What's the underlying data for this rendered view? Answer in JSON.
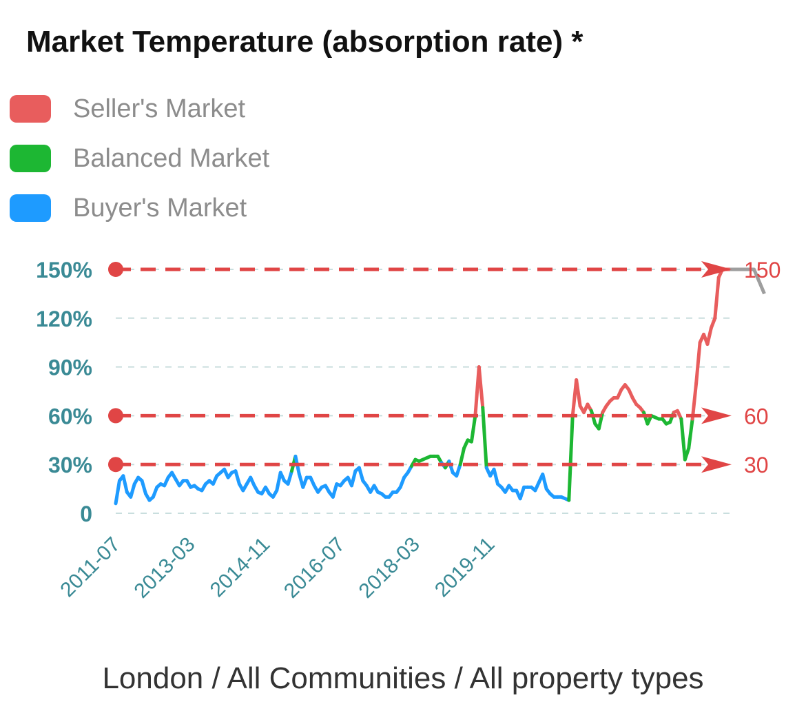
{
  "title": "Market Temperature (absorption rate) *",
  "legend": [
    {
      "label": "Seller's Market",
      "color": "#e85d5d"
    },
    {
      "label": "Balanced Market",
      "color": "#1db733"
    },
    {
      "label": "Buyer's Market",
      "color": "#1e9bff"
    }
  ],
  "footer": "London / All Communities / All property types",
  "chart_data": {
    "type": "line",
    "ylim": [
      0,
      150
    ],
    "yticks": [
      {
        "value": 0,
        "label": "0"
      },
      {
        "value": 30,
        "label": "30%"
      },
      {
        "value": 60,
        "label": "60%"
      },
      {
        "value": 90,
        "label": "90%"
      },
      {
        "value": 120,
        "label": "120%"
      },
      {
        "value": 150,
        "label": "150%"
      }
    ],
    "xticks": [
      "2011-07",
      "2013-03",
      "2014-11",
      "2016-07",
      "2018-03",
      "2019-11"
    ],
    "thresholds": [
      {
        "value": 30,
        "label": "30"
      },
      {
        "value": 60,
        "label": "60"
      },
      {
        "value": 150,
        "label": "150"
      }
    ],
    "colors": {
      "seller": "#e85d5d",
      "balanced": "#1db733",
      "buyer": "#1e9bff",
      "threshold": "#e04545",
      "axis": "#3a8a95",
      "grid": "#c9dede",
      "tail": "#9e9e9e"
    },
    "x_start": "2011-07",
    "values": [
      6,
      20,
      23,
      13,
      10,
      18,
      22,
      20,
      12,
      8,
      10,
      16,
      18,
      17,
      22,
      25,
      21,
      17,
      20,
      20,
      16,
      17,
      15,
      14,
      18,
      20,
      18,
      23,
      25,
      27,
      22,
      25,
      26,
      18,
      14,
      18,
      22,
      17,
      13,
      12,
      16,
      12,
      10,
      14,
      25,
      20,
      18,
      26,
      35,
      24,
      16,
      22,
      22,
      17,
      13,
      16,
      17,
      13,
      10,
      18,
      17,
      20,
      22,
      17,
      26,
      28,
      20,
      17,
      13,
      17,
      13,
      12,
      10,
      10,
      13,
      13,
      16,
      22,
      25,
      29,
      33,
      32,
      33,
      34,
      35,
      35,
      35,
      31,
      28,
      32,
      25,
      23,
      30,
      40,
      45,
      44,
      60,
      90,
      65,
      28,
      23,
      27,
      18,
      16,
      13,
      17,
      14,
      14,
      9,
      16,
      16,
      16,
      14,
      19,
      24,
      15,
      12,
      10,
      10,
      10,
      9,
      8,
      60,
      82,
      66,
      62,
      67,
      63,
      55,
      52,
      62,
      66,
      69,
      71,
      71,
      76,
      79,
      76,
      71,
      67,
      65,
      62,
      55,
      60,
      59,
      58,
      58,
      55,
      56,
      62,
      63,
      58,
      33,
      40,
      58,
      80,
      105,
      110,
      104,
      114,
      120,
      145,
      150,
      150,
      150
    ],
    "tail": [
      150,
      135
    ]
  }
}
